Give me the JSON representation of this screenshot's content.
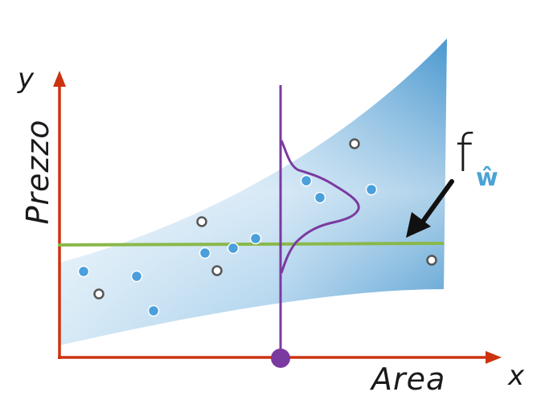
{
  "axes": {
    "y_symbol": "y",
    "x_symbol": "x",
    "y_title": "Prezzo",
    "x_title": "Area",
    "axis_color": "#cc3311"
  },
  "model": {
    "function_name": "f",
    "subscript": "ŵ",
    "fit_line_color": "#8ab84a",
    "band_color": "#4aa3d6",
    "distribution_color": "#7a3aa0"
  },
  "points": {
    "observed_color": "#4a9fdc",
    "other_color": "#ffffff",
    "other_stroke": "#555555"
  }
}
